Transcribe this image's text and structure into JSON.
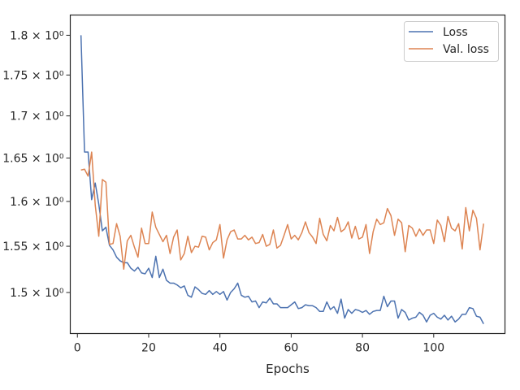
{
  "chart_data": {
    "type": "line",
    "xlabel": "Epochs",
    "ylabel": "",
    "xlim": [
      -2,
      120
    ],
    "ylim": [
      1.457,
      1.826
    ],
    "y_scale": "log",
    "grid": false,
    "legend_position": "top-right",
    "x_ticks": [
      0,
      20,
      40,
      60,
      80,
      100
    ],
    "x_tick_labels": [
      "0",
      "20",
      "40",
      "60",
      "80",
      "100"
    ],
    "y_ticks": [
      1.5,
      1.55,
      1.6,
      1.65,
      1.7,
      1.75,
      1.8
    ],
    "y_tick_labels": [
      "1.5 × 10⁰",
      "1.55 × 10⁰",
      "1.6 × 10⁰",
      "1.65 × 10⁰",
      "1.7 × 10⁰",
      "1.75 × 10⁰",
      "1.8 × 10⁰"
    ],
    "colors": {
      "Loss": "#4c72b0",
      "Val. loss": "#dd8452",
      "axes": "#262626"
    },
    "series": [
      {
        "name": "Loss",
        "x": [
          1,
          2,
          3,
          4,
          5,
          6,
          7,
          8,
          9,
          10,
          11,
          12,
          13,
          14,
          15,
          16,
          17,
          18,
          19,
          20,
          21,
          22,
          23,
          24,
          25,
          26,
          27,
          28,
          29,
          30,
          31,
          32,
          33,
          34,
          35,
          36,
          37,
          38,
          39,
          40,
          41,
          42,
          43,
          44,
          45,
          46,
          47,
          48,
          49,
          50,
          51,
          52,
          53,
          54,
          55,
          56,
          57,
          58,
          59,
          60,
          61,
          62,
          63,
          64,
          65,
          66,
          67,
          68,
          69,
          70,
          71,
          72,
          73,
          74,
          75,
          76,
          77,
          78,
          79,
          80,
          81,
          82,
          83,
          84,
          85,
          86,
          87,
          88,
          89,
          90,
          91,
          92,
          93,
          94,
          95,
          96,
          97,
          98,
          99,
          100,
          101,
          102,
          103,
          104,
          105,
          106,
          107,
          108,
          109,
          110,
          111,
          112,
          113,
          114
        ],
        "values": [
          1.8,
          1.657,
          1.657,
          1.602,
          1.621,
          1.597,
          1.567,
          1.571,
          1.551,
          1.546,
          1.538,
          1.534,
          1.532,
          1.532,
          1.526,
          1.523,
          1.527,
          1.521,
          1.52,
          1.526,
          1.516,
          1.539,
          1.516,
          1.525,
          1.513,
          1.51,
          1.51,
          1.508,
          1.505,
          1.507,
          1.497,
          1.495,
          1.506,
          1.503,
          1.499,
          1.498,
          1.502,
          1.498,
          1.501,
          1.498,
          1.501,
          1.492,
          1.5,
          1.504,
          1.51,
          1.497,
          1.495,
          1.496,
          1.49,
          1.491,
          1.484,
          1.49,
          1.489,
          1.494,
          1.488,
          1.488,
          1.484,
          1.484,
          1.484,
          1.487,
          1.49,
          1.483,
          1.484,
          1.487,
          1.486,
          1.486,
          1.484,
          1.48,
          1.48,
          1.49,
          1.482,
          1.485,
          1.478,
          1.493,
          1.473,
          1.482,
          1.478,
          1.482,
          1.481,
          1.479,
          1.481,
          1.477,
          1.48,
          1.481,
          1.481,
          1.496,
          1.485,
          1.491,
          1.491,
          1.473,
          1.482,
          1.479,
          1.471,
          1.473,
          1.474,
          1.479,
          1.476,
          1.469,
          1.476,
          1.478,
          1.474,
          1.472,
          1.476,
          1.471,
          1.475,
          1.469,
          1.472,
          1.477,
          1.477,
          1.484,
          1.483,
          1.475,
          1.474,
          1.467
        ]
      },
      {
        "name": "Val. loss",
        "x": [
          1,
          2,
          3,
          4,
          5,
          6,
          7,
          8,
          9,
          10,
          11,
          12,
          13,
          14,
          15,
          16,
          17,
          18,
          19,
          20,
          21,
          22,
          23,
          24,
          25,
          26,
          27,
          28,
          29,
          30,
          31,
          32,
          33,
          34,
          35,
          36,
          37,
          38,
          39,
          40,
          41,
          42,
          43,
          44,
          45,
          46,
          47,
          48,
          49,
          50,
          51,
          52,
          53,
          54,
          55,
          56,
          57,
          58,
          59,
          60,
          61,
          62,
          63,
          64,
          65,
          66,
          67,
          68,
          69,
          70,
          71,
          72,
          73,
          74,
          75,
          76,
          77,
          78,
          79,
          80,
          81,
          82,
          83,
          84,
          85,
          86,
          87,
          88,
          89,
          90,
          91,
          92,
          93,
          94,
          95,
          96,
          97,
          98,
          99,
          100,
          101,
          102,
          103,
          104,
          105,
          106,
          107,
          108,
          109,
          110,
          111,
          112,
          113,
          114
        ],
        "values": [
          1.636,
          1.637,
          1.629,
          1.657,
          1.596,
          1.561,
          1.625,
          1.622,
          1.552,
          1.553,
          1.575,
          1.561,
          1.525,
          1.556,
          1.562,
          1.549,
          1.538,
          1.57,
          1.553,
          1.553,
          1.588,
          1.571,
          1.563,
          1.555,
          1.562,
          1.542,
          1.56,
          1.568,
          1.535,
          1.542,
          1.561,
          1.543,
          1.55,
          1.549,
          1.561,
          1.56,
          1.546,
          1.554,
          1.557,
          1.574,
          1.537,
          1.557,
          1.566,
          1.568,
          1.558,
          1.558,
          1.562,
          1.557,
          1.56,
          1.553,
          1.554,
          1.563,
          1.55,
          1.552,
          1.568,
          1.548,
          1.551,
          1.562,
          1.574,
          1.558,
          1.562,
          1.557,
          1.565,
          1.577,
          1.565,
          1.56,
          1.553,
          1.581,
          1.563,
          1.556,
          1.573,
          1.567,
          1.582,
          1.566,
          1.569,
          1.577,
          1.559,
          1.572,
          1.558,
          1.56,
          1.574,
          1.542,
          1.566,
          1.58,
          1.574,
          1.576,
          1.592,
          1.584,
          1.562,
          1.58,
          1.576,
          1.544,
          1.573,
          1.57,
          1.561,
          1.569,
          1.562,
          1.568,
          1.568,
          1.553,
          1.579,
          1.573,
          1.555,
          1.583,
          1.57,
          1.567,
          1.575,
          1.547,
          1.593,
          1.567,
          1.59,
          1.581,
          1.546,
          1.575
        ]
      }
    ]
  }
}
